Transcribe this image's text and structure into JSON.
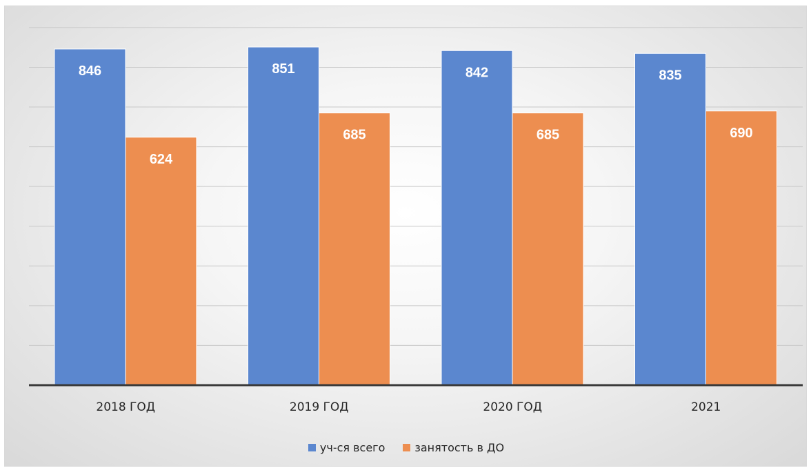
{
  "chart_data": {
    "type": "bar",
    "categories": [
      "2018 ГОД",
      "2019 ГОД",
      "2020 ГОД",
      "2021"
    ],
    "series": [
      {
        "name": "уч-ся всего",
        "values": [
          846,
          851,
          842,
          835
        ],
        "color": "#5b87cf"
      },
      {
        "name": "занятость в  ДО",
        "values": [
          624,
          685,
          685,
          690
        ],
        "color": "#ed8e50"
      }
    ],
    "ylim": [
      0,
      900
    ],
    "grid": true,
    "legend": "bottom",
    "data_labels": true
  }
}
